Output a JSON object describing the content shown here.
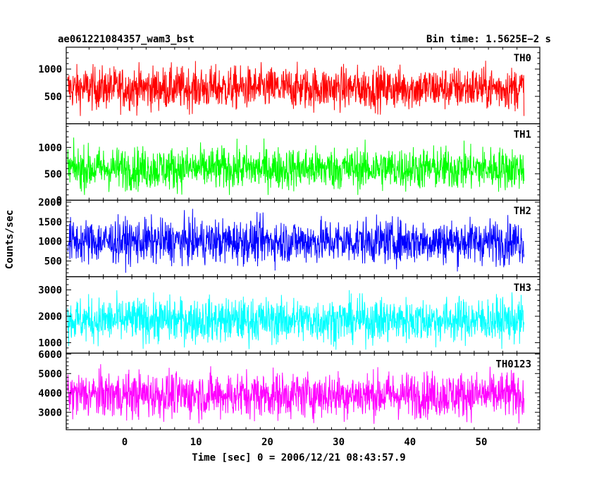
{
  "chart_data": {
    "type": "line",
    "title_left": "ae061221084357_wam3_bst",
    "title_right": "Bin time: 1.5625E−2 s",
    "xlabel": "Time [sec] 0 = 2006/12/21 08:43:57.9",
    "ylabel": "Counts/sec",
    "xlim": [
      -8.2,
      58.2
    ],
    "x_ticks": [
      0,
      10,
      20,
      30,
      40,
      50
    ],
    "data_x_range": [
      -8,
      56
    ],
    "panels": [
      {
        "name": "TH0",
        "color": "#ff0000",
        "ylim": [
          0,
          1400
        ],
        "y_ticks": [
          500,
          1000
        ],
        "data_range": [
          100,
          1350
        ],
        "mean": 650
      },
      {
        "name": "TH1",
        "color": "#00ff00",
        "ylim": [
          0,
          1450
        ],
        "y_ticks": [
          0,
          500,
          1000
        ],
        "data_range": [
          100,
          1400
        ],
        "mean": 600
      },
      {
        "name": "TH2",
        "color": "#0000ff",
        "ylim": [
          100,
          2050
        ],
        "y_ticks": [
          500,
          1000,
          1500,
          2000
        ],
        "data_range": [
          200,
          2000
        ],
        "mean": 1000
      },
      {
        "name": "TH3",
        "color": "#00ffff",
        "ylim": [
          600,
          3500
        ],
        "y_ticks": [
          1000,
          2000,
          3000
        ],
        "data_range": [
          700,
          3400
        ],
        "mean": 1850
      },
      {
        "name": "TH0123",
        "color": "#ff00ff",
        "ylim": [
          2100,
          6050
        ],
        "y_ticks": [
          3000,
          4000,
          5000,
          6000
        ],
        "data_range": [
          2200,
          6000
        ],
        "mean": 3900
      }
    ]
  }
}
